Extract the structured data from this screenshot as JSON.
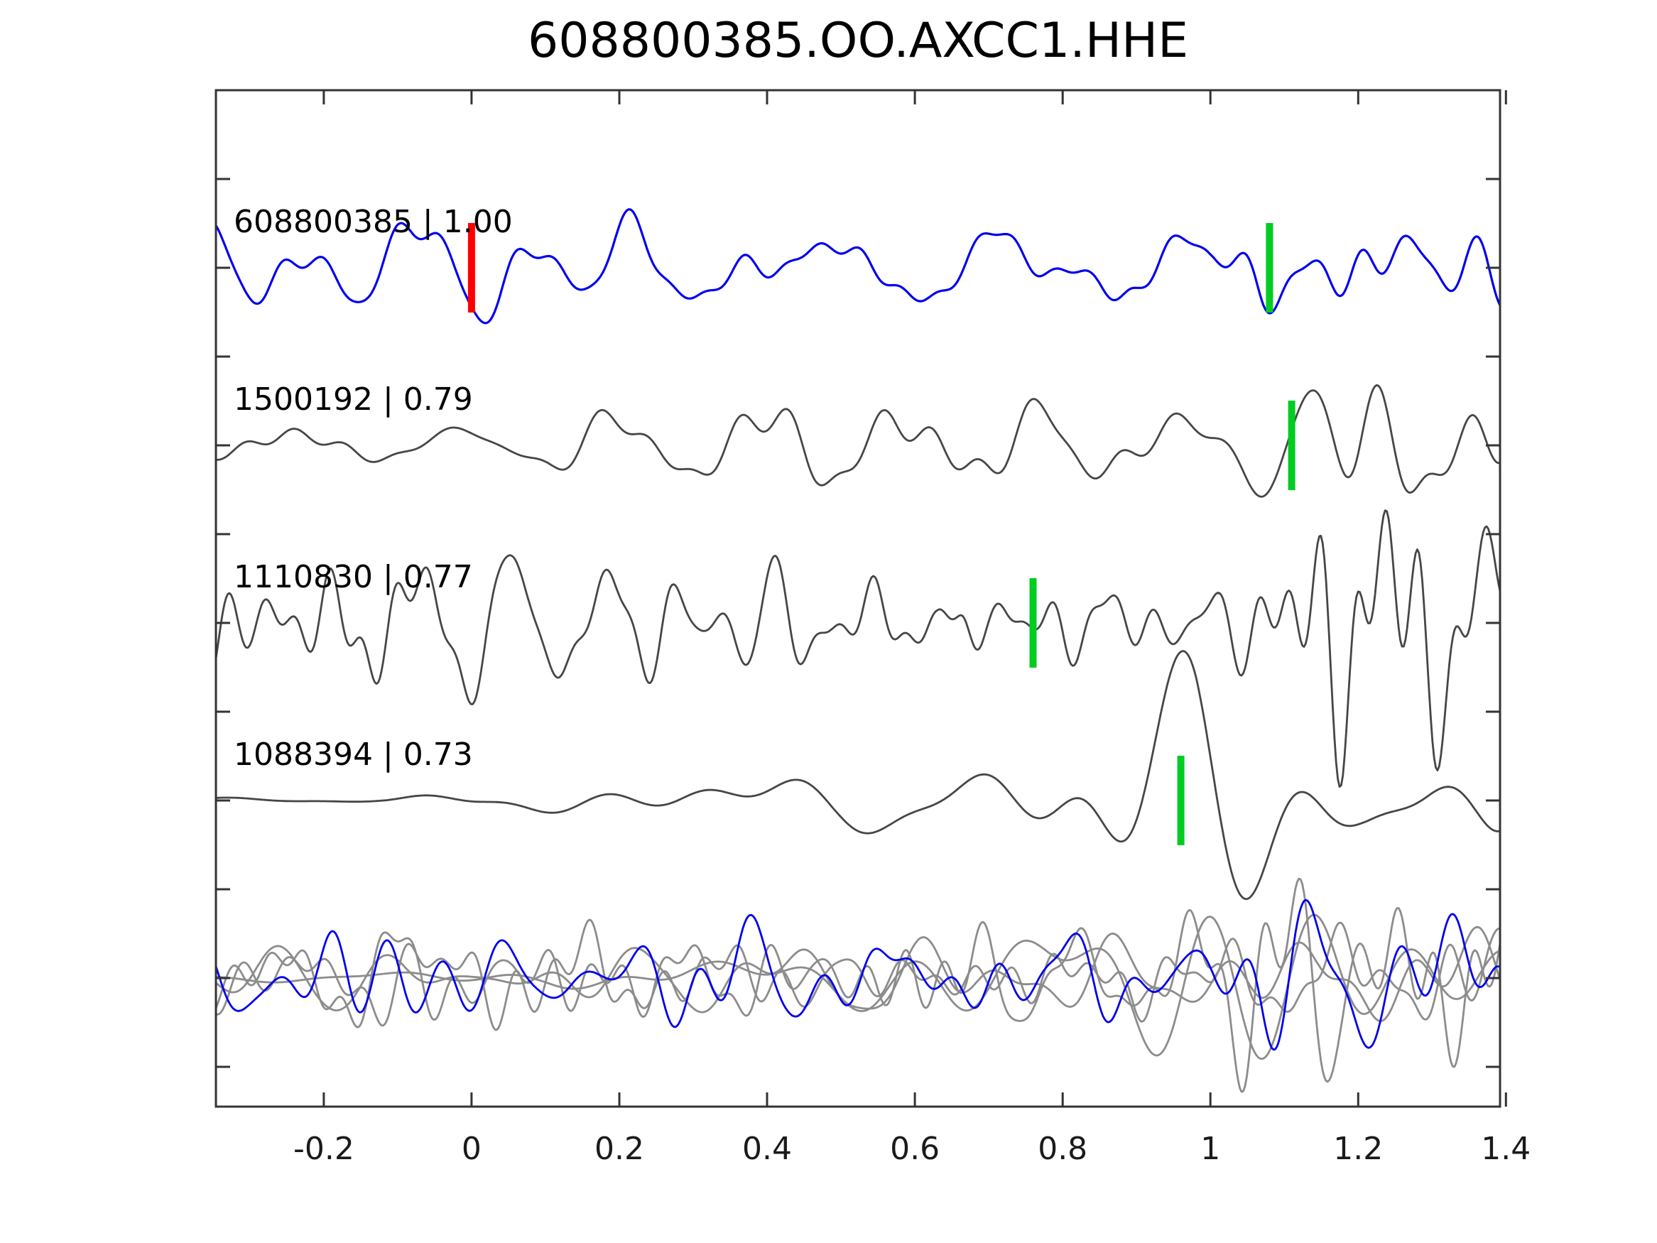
{
  "chart_data": {
    "type": "line",
    "title": "608800385.OO.AXCC1.HHE",
    "xlabel": "",
    "ylabel": "",
    "x_range": [
      -0.346,
      1.392
    ],
    "xtick_values": [
      -0.2,
      0,
      0.2,
      0.4,
      0.6,
      0.8,
      1.0,
      1.2,
      1.4
    ],
    "xtick_labels": [
      "-0.2",
      "0",
      "0.2",
      "0.4",
      "0.6",
      "0.8",
      "1",
      "1.2",
      "1.4"
    ],
    "ytick_labels": [],
    "grid": false,
    "legend": "none",
    "colors": {
      "template_trace": "#0000ee",
      "detection_trace": "#464646",
      "overlay_trace": "#8c8c8c",
      "origin_marker": "#ff0000",
      "pick_marker": "#00cc22",
      "axis": "#333333",
      "text": "#000000",
      "background": "#ffffff"
    },
    "traces": [
      {
        "event_id": "608800385",
        "correlation": 1.0,
        "label_text": "608800385 | 1.00",
        "row": 1,
        "color_key": "template_trace",
        "markers": [
          {
            "t": 0.0,
            "color_key": "origin_marker"
          },
          {
            "t": 1.08,
            "color_key": "pick_marker"
          }
        ],
        "style": {
          "seed": 11,
          "amp": 30,
          "fmin": 3,
          "fmax": 20,
          "n": 14,
          "envelope": [
            [
              -0.35,
              1
            ],
            [
              0.85,
              1
            ],
            [
              0.9,
              1.25
            ],
            [
              1.0,
              1.05
            ],
            [
              1.07,
              1.8
            ],
            [
              1.18,
              2.1
            ],
            [
              1.3,
              1.7
            ],
            [
              1.39,
              1.5
            ]
          ]
        }
      },
      {
        "event_id": "1500192",
        "correlation": 0.79,
        "label_text": "1500192 | 0.79",
        "row": 2,
        "color_key": "detection_trace",
        "markers": [
          {
            "t": 1.11,
            "color_key": "pick_marker"
          }
        ],
        "style": {
          "seed": 22,
          "amp": 26,
          "fmin": 4,
          "fmax": 22,
          "n": 14,
          "envelope": [
            [
              -0.35,
              0.55
            ],
            [
              0.1,
              0.7
            ],
            [
              0.4,
              1
            ],
            [
              1.0,
              1.05
            ],
            [
              1.1,
              1.6
            ],
            [
              1.2,
              2.6
            ],
            [
              1.3,
              2.1
            ],
            [
              1.39,
              1.6
            ]
          ]
        }
      },
      {
        "event_id": "1110830",
        "correlation": 0.77,
        "label_text": "1110830 | 0.77",
        "row": 3,
        "color_key": "detection_trace",
        "markers": [
          {
            "t": 0.76,
            "color_key": "pick_marker"
          }
        ],
        "style": {
          "seed": 33,
          "amp": 36,
          "fmin": 6,
          "fmax": 26,
          "n": 16,
          "envelope": [
            [
              -0.35,
              1.15
            ],
            [
              0.55,
              1.1
            ],
            [
              0.63,
              1.0
            ],
            [
              0.665,
              2.1
            ],
            [
              0.7,
              1.05
            ],
            [
              1.0,
              0.95
            ],
            [
              1.08,
              1.5
            ],
            [
              1.18,
              2.3
            ],
            [
              1.28,
              2.1
            ],
            [
              1.39,
              1.5
            ]
          ]
        }
      },
      {
        "event_id": "1088394",
        "correlation": 0.73,
        "label_text": "1088394 | 0.73",
        "row": 4,
        "color_key": "detection_trace",
        "markers": [
          {
            "t": 0.96,
            "color_key": "pick_marker"
          }
        ],
        "style": {
          "seed": 44,
          "amp": 34,
          "fmin": 1.8,
          "fmax": 8,
          "n": 9,
          "envelope": [
            [
              -0.35,
              0.05
            ],
            [
              -0.12,
              0.07
            ],
            [
              0.0,
              0.3
            ],
            [
              0.25,
              0.45
            ],
            [
              0.5,
              0.7
            ],
            [
              0.65,
              1.2
            ],
            [
              0.78,
              1.7
            ],
            [
              0.9,
              2.3
            ],
            [
              0.98,
              2.6
            ],
            [
              1.1,
              2.3
            ],
            [
              1.2,
              2.1
            ],
            [
              1.3,
              2.3
            ],
            [
              1.39,
              1.9
            ]
          ]
        }
      }
    ],
    "overlay": {
      "row": 5,
      "traces": [
        {
          "color_key": "overlay_trace",
          "style": {
            "seed": 51,
            "amp": 27,
            "fmin": 4,
            "fmax": 22,
            "n": 14,
            "envelope": [
              [
                -0.35,
                1
              ],
              [
                1.0,
                1.1
              ],
              [
                1.15,
                1.8
              ],
              [
                1.39,
                1.6
              ]
            ]
          }
        },
        {
          "color_key": "overlay_trace",
          "style": {
            "seed": 52,
            "amp": 34,
            "fmin": 5,
            "fmax": 24,
            "n": 14,
            "envelope": [
              [
                -0.35,
                1
              ],
              [
                0.9,
                1.1
              ],
              [
                1.1,
                2.2
              ],
              [
                1.25,
                2.8
              ],
              [
                1.39,
                2.2
              ]
            ]
          }
        },
        {
          "color_key": "overlay_trace",
          "style": {
            "seed": 53,
            "amp": 30,
            "fmin": 1.8,
            "fmax": 8,
            "n": 9,
            "envelope": [
              [
                -0.35,
                0.1
              ],
              [
                0.1,
                0.2
              ],
              [
                0.5,
                0.8
              ],
              [
                0.8,
                1.6
              ],
              [
                0.95,
                2.9
              ],
              [
                1.1,
                3.3
              ],
              [
                1.25,
                2.6
              ],
              [
                1.39,
                2.2
              ]
            ]
          }
        },
        {
          "color_key": "overlay_trace",
          "style": {
            "seed": 54,
            "amp": 22,
            "fmin": 3,
            "fmax": 14,
            "n": 12,
            "envelope": [
              [
                -0.35,
                0.9
              ],
              [
                1.05,
                1.1
              ],
              [
                1.2,
                1.7
              ],
              [
                1.39,
                1.7
              ]
            ]
          }
        },
        {
          "color_key": "template_trace",
          "style": {
            "seed": 60,
            "amp": 28,
            "fmin": 3,
            "fmax": 18,
            "n": 14,
            "envelope": [
              [
                -0.35,
                1
              ],
              [
                0.95,
                1
              ],
              [
                1.08,
                1.6
              ],
              [
                1.2,
                2.1
              ],
              [
                1.3,
                2.2
              ],
              [
                1.39,
                1.8
              ]
            ]
          }
        }
      ]
    }
  }
}
